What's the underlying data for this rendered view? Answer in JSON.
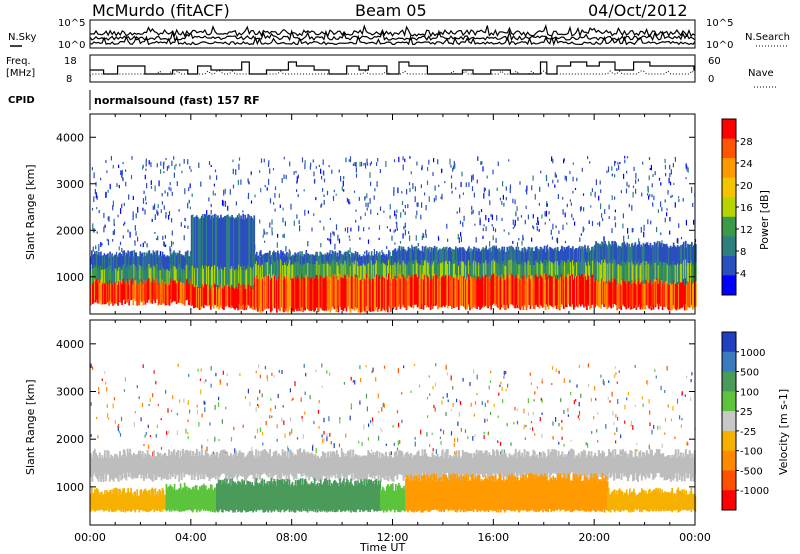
{
  "header": {
    "station": "McMurdo (fitACF)",
    "beam": "Beam 05",
    "date": "04/Oct/2012"
  },
  "top_panels": {
    "noise_left_label": "N.Sky",
    "noise_right_label": "N.Search",
    "noise_ticks_left": [
      "10^5",
      "10^0"
    ],
    "noise_ticks_right": [
      "10^5",
      "10^0"
    ],
    "freq_label_line1": "Freq.",
    "freq_label_line2": "[MHz]",
    "freq_ticks": [
      "18",
      "8"
    ],
    "nave_label": "Nave",
    "nave_ticks": [
      "60",
      "0"
    ],
    "cpid_label": "CPID",
    "cpid_text": "normalsound (fast) 157 RF"
  },
  "colors": {
    "noise_line": "#000000",
    "freq_line": "#000000",
    "ground_scatter": "#bdbdbd"
  },
  "chart_data": [
    {
      "type": "heatmap",
      "name": "power-panel",
      "ylabel": "Slant Range [km]",
      "xlabel": "",
      "yticks": [
        "4000",
        "3000",
        "2000",
        "1000"
      ],
      "ylim": [
        200,
        4500
      ],
      "xlim": [
        0,
        24
      ],
      "colorbar_label": "Power [dB]",
      "colorbar_ticks": [
        "28",
        "24",
        "20",
        "16",
        "12",
        "8",
        "4"
      ],
      "colorbar_colors": [
        "#ff0000",
        "#ff5500",
        "#ff9900",
        "#f5c400",
        "#b5d400",
        "#3a9a4a",
        "#2f7f7f",
        "#2a4fbf",
        "#0000ff"
      ],
      "bands": [
        {
          "t": [
            0,
            4
          ],
          "core": [
            450,
            900
          ],
          "mid": [
            900,
            1200
          ],
          "outer": [
            1200,
            1500
          ]
        },
        {
          "t": [
            4,
            6.5
          ],
          "core": [
            350,
            800
          ],
          "mid": [
            800,
            1200
          ],
          "outer": [
            1200,
            2300
          ]
        },
        {
          "t": [
            6.5,
            12
          ],
          "core": [
            300,
            1000
          ],
          "mid": [
            1000,
            1300
          ],
          "outer": [
            1300,
            1500
          ]
        },
        {
          "t": [
            12,
            20
          ],
          "core": [
            350,
            1000
          ],
          "mid": [
            1000,
            1300
          ],
          "outer": [
            1300,
            1600
          ]
        },
        {
          "t": [
            20,
            24
          ],
          "core": [
            350,
            900
          ],
          "mid": [
            900,
            1300
          ],
          "outer": [
            1300,
            1700
          ]
        }
      ]
    },
    {
      "type": "heatmap",
      "name": "velocity-panel",
      "ylabel": "Slant Range [km]",
      "xlabel": "Time UT",
      "yticks": [
        "4000",
        "3000",
        "2000",
        "1000"
      ],
      "ylim": [
        200,
        4500
      ],
      "xlim": [
        0,
        24
      ],
      "xticks": [
        "00:00",
        "04:00",
        "08:00",
        "12:00",
        "16:00",
        "20:00",
        "00:00"
      ],
      "colorbar_label": "Velocity [m s-1]",
      "colorbar_ticks": [
        "1000",
        "500",
        "100",
        "25",
        "-25",
        "-100",
        "-500",
        "-1000"
      ],
      "colorbar_colors": [
        "#2040c0",
        "#3a7abf",
        "#4a9a5a",
        "#5cc43c",
        "#c8c8c8",
        "#f5b000",
        "#ff8a00",
        "#ff5000",
        "#ff0000"
      ],
      "bands": [
        {
          "t": [
            0,
            3
          ],
          "color": "#f5b000",
          "range": [
            500,
            900
          ]
        },
        {
          "t": [
            3,
            5
          ],
          "color": "#5cc43c",
          "range": [
            500,
            1000
          ]
        },
        {
          "t": [
            5,
            11.5
          ],
          "color": "#4a9a5a",
          "range": [
            500,
            1100
          ]
        },
        {
          "t": [
            11.5,
            12.5
          ],
          "color": "#5cc43c",
          "range": [
            500,
            1000
          ]
        },
        {
          "t": [
            12.5,
            20.5
          ],
          "color": "#ff9a00",
          "range": [
            500,
            1200
          ]
        },
        {
          "t": [
            20.5,
            24
          ],
          "color": "#f5b000",
          "range": [
            500,
            900
          ]
        }
      ],
      "ground_scatter": {
        "t": [
          0,
          24
        ],
        "range": [
          1200,
          1700
        ]
      }
    }
  ]
}
